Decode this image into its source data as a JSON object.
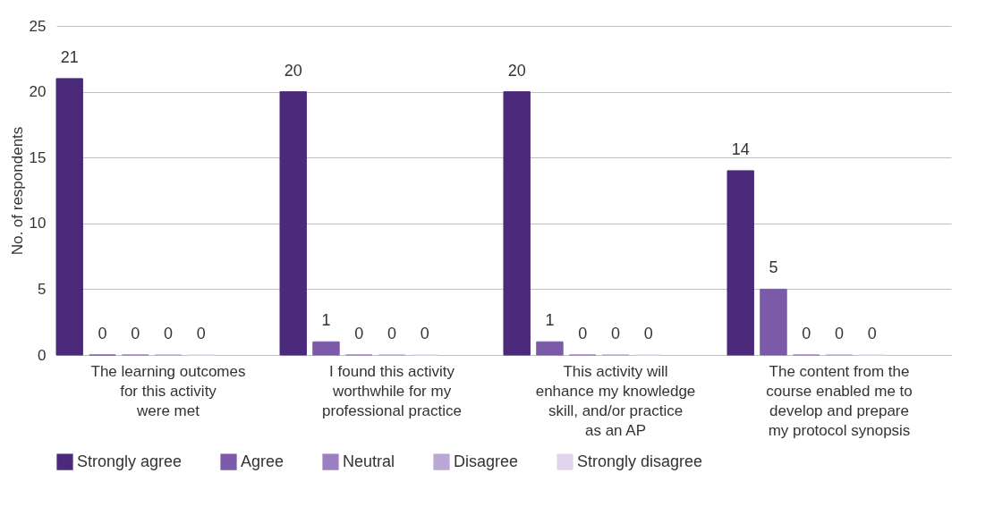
{
  "chart_data": {
    "type": "bar",
    "ylabel": "No. of respondents",
    "categories": [
      "The learning outcomes\nfor this activity\nwere met",
      "I found this activity\nworthwhile for my\nprofessional practice",
      "This activity will\nenhance my knowledge\nskill, and/or practice\nas an AP",
      "The content from the\ncourse enabled me to\ndevelop and prepare\nmy protocol synopsis"
    ],
    "series": [
      {
        "name": "Strongly agree",
        "color": "#4b2a7b",
        "values": [
          21,
          20,
          20,
          14
        ]
      },
      {
        "name": "Agree",
        "color": "#7b5aa8",
        "values": [
          0,
          1,
          1,
          5
        ]
      },
      {
        "name": "Neutral",
        "color": "#9c7fc0",
        "values": [
          0,
          0,
          0,
          0
        ]
      },
      {
        "name": "Disagree",
        "color": "#bba6d6",
        "values": [
          0,
          0,
          0,
          0
        ]
      },
      {
        "name": "Strongly disagree",
        "color": "#e0d5ec",
        "values": [
          0,
          0,
          0,
          0
        ]
      }
    ],
    "ylim": [
      0,
      25
    ],
    "yticks": [
      0,
      5,
      10,
      15,
      20,
      25
    ],
    "grid": "y",
    "legend": "bottom",
    "data_labels": true
  }
}
